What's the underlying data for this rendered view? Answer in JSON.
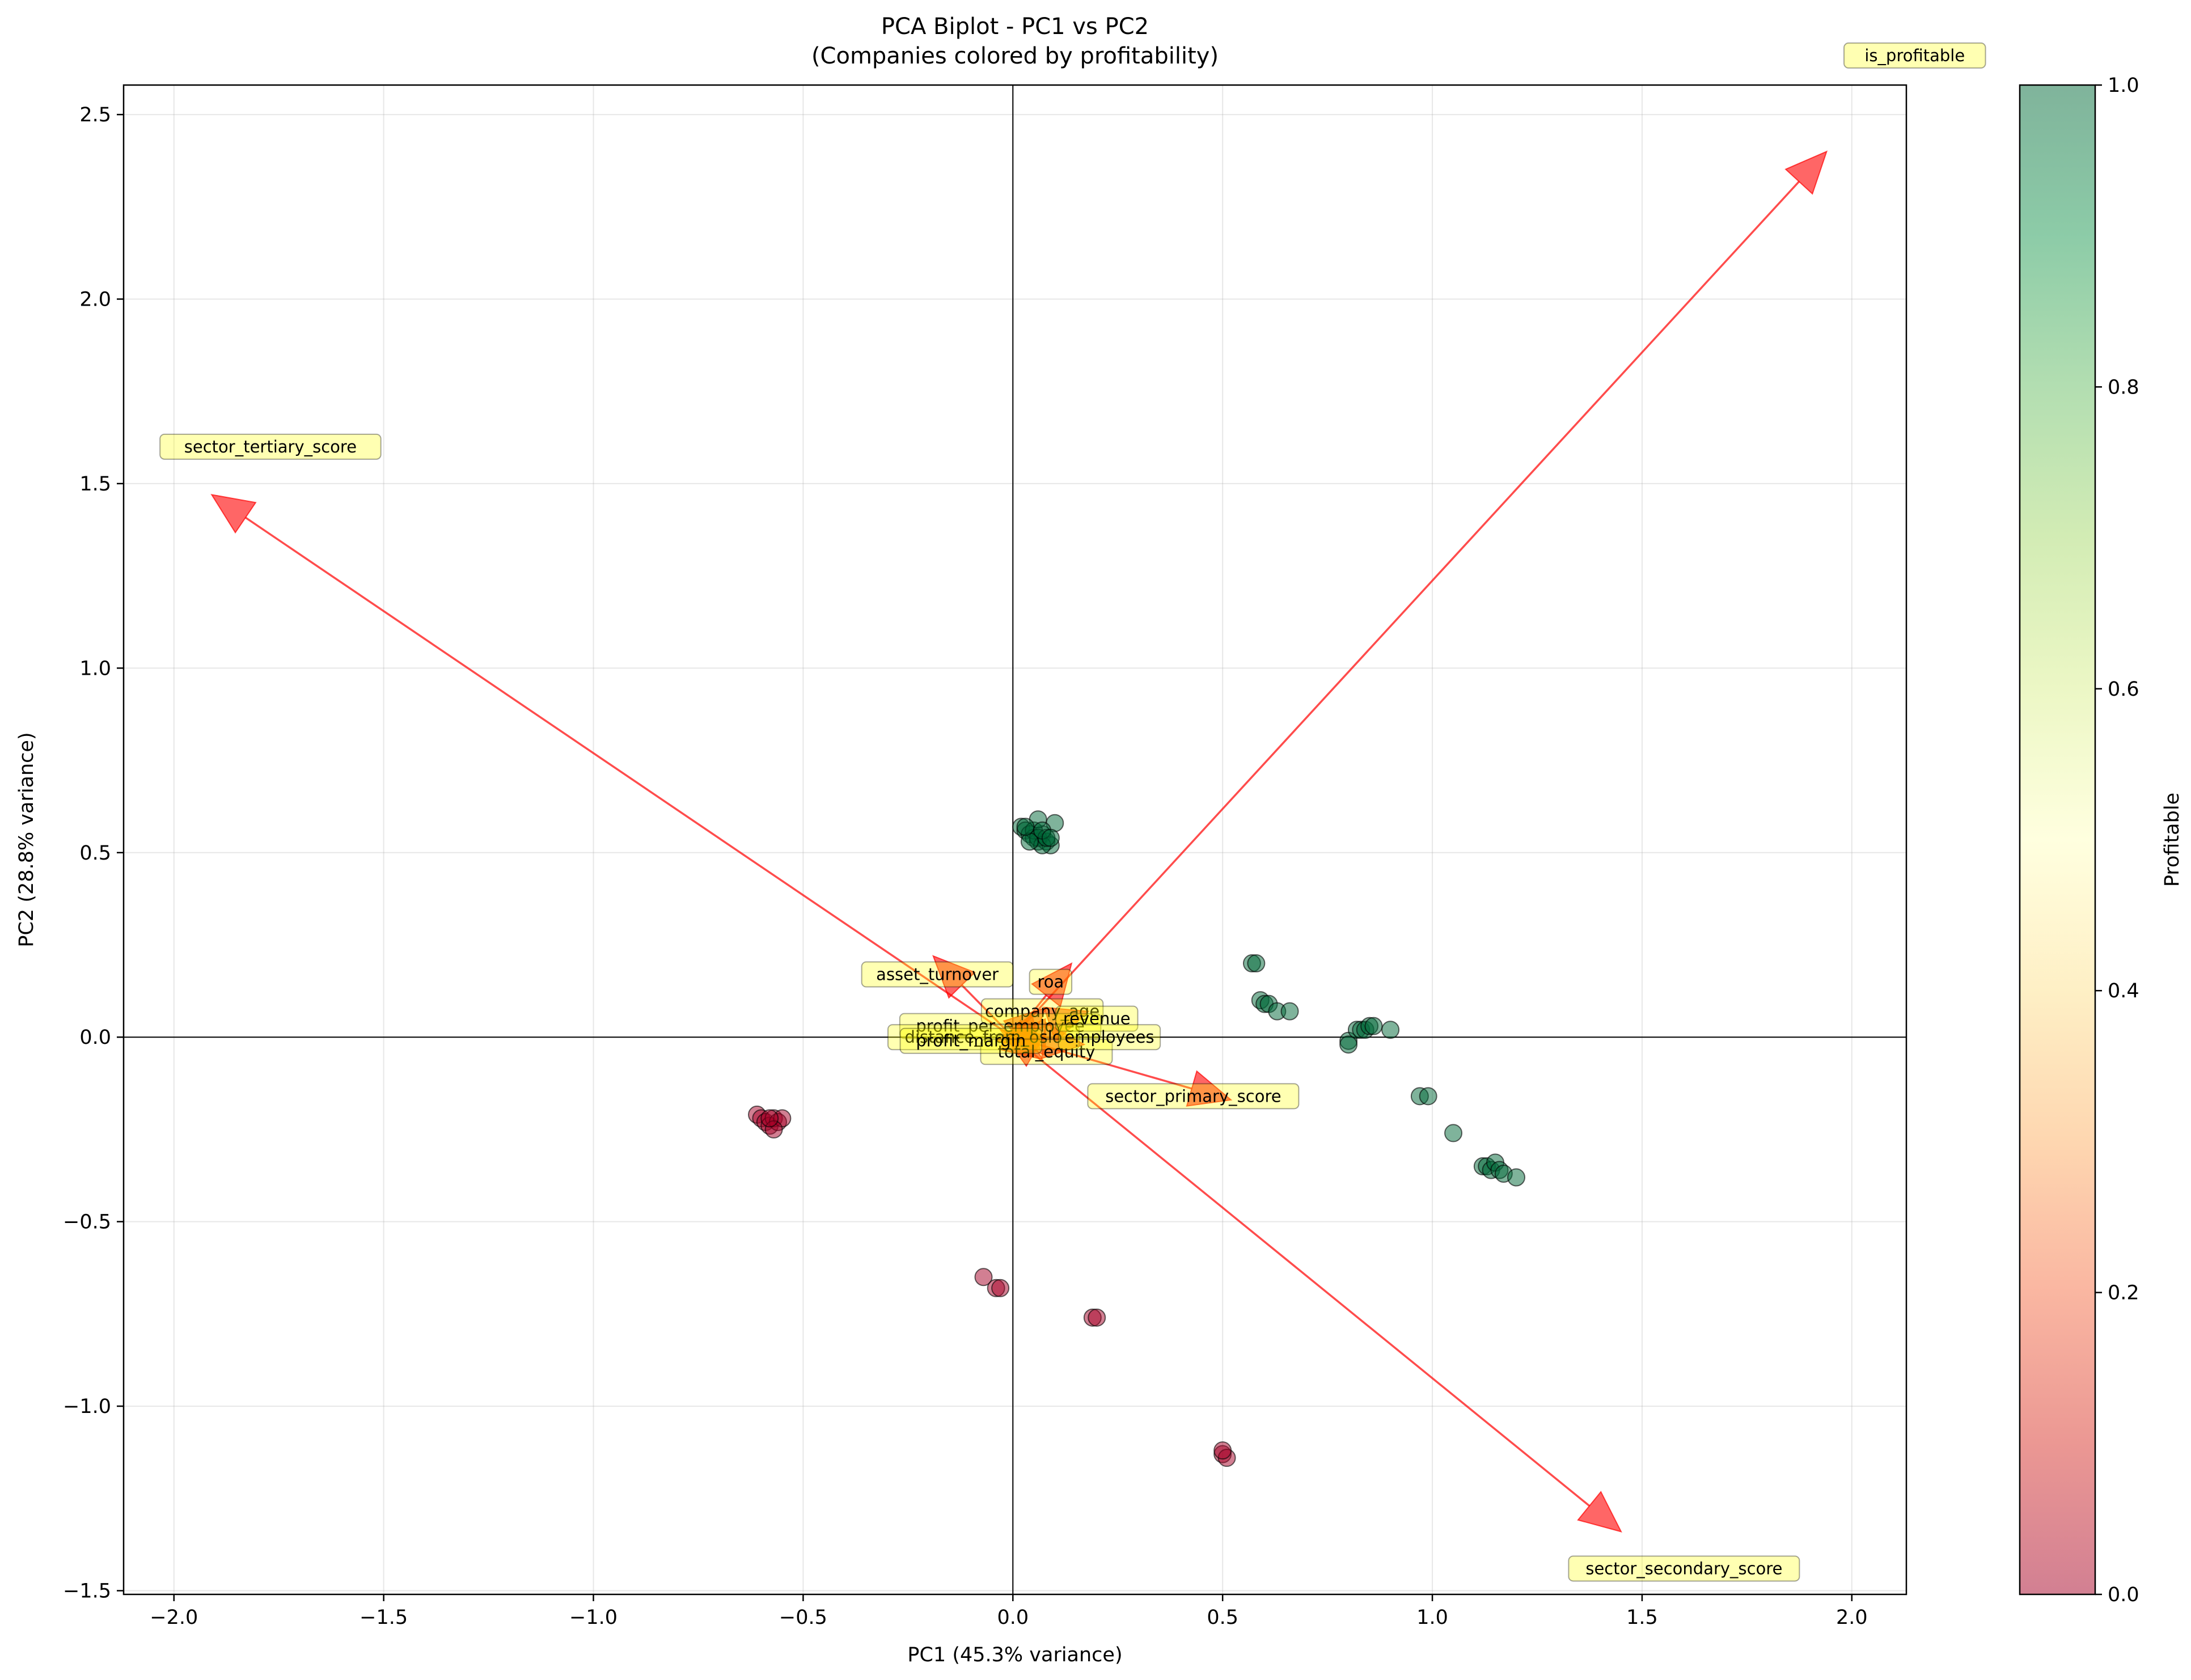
{
  "chart_data": {
    "type": "scatter",
    "title": "PCA Biplot - PC1 vs PC2",
    "subtitle": "(Companies colored by profitability)",
    "xlabel": "PC1 (45.3% variance)",
    "ylabel": "PC2 (28.8% variance)",
    "xlim": [
      -2.12,
      2.13
    ],
    "ylim": [
      -1.51,
      2.58
    ],
    "xticks": [
      -2.0,
      -1.5,
      -1.0,
      -0.5,
      0.0,
      0.5,
      1.0,
      1.5,
      2.0
    ],
    "xtick_labels": [
      "−2.0",
      "−1.5",
      "−1.0",
      "−0.5",
      "0.0",
      "0.5",
      "1.0",
      "1.5",
      "2.0"
    ],
    "yticks": [
      -1.5,
      -1.0,
      -0.5,
      0.0,
      0.5,
      1.0,
      1.5,
      2.0,
      2.5
    ],
    "ytick_labels": [
      "−1.5",
      "−1.0",
      "−0.5",
      "0.0",
      "0.5",
      "1.0",
      "1.5",
      "2.0",
      "2.5"
    ],
    "grid": true,
    "colorbar": {
      "label": "Profitable",
      "ticks": [
        0.0,
        0.2,
        0.4,
        0.6,
        0.8,
        1.0
      ],
      "tick_labels": [
        "0.0",
        "0.2",
        "0.4",
        "0.6",
        "0.8",
        "1.0"
      ],
      "colormap": [
        "#a50026",
        "#d73027",
        "#f46d43",
        "#fdae61",
        "#fee08b",
        "#ffffbf",
        "#d9ef8b",
        "#a6d96a",
        "#66bd63",
        "#1a9850",
        "#006837"
      ]
    },
    "series": [
      {
        "profitable": 1,
        "points": [
          [
            0.02,
            0.57
          ],
          [
            0.03,
            0.56
          ],
          [
            0.04,
            0.55
          ],
          [
            0.05,
            0.54
          ],
          [
            0.06,
            0.53
          ],
          [
            0.07,
            0.55
          ],
          [
            0.08,
            0.53
          ],
          [
            0.09,
            0.52
          ],
          [
            0.05,
            0.56
          ],
          [
            0.06,
            0.54
          ],
          [
            0.07,
            0.52
          ],
          [
            0.08,
            0.54
          ],
          [
            0.1,
            0.58
          ],
          [
            0.06,
            0.59
          ],
          [
            0.04,
            0.53
          ],
          [
            0.03,
            0.57
          ],
          [
            0.07,
            0.56
          ],
          [
            0.09,
            0.54
          ],
          [
            0.57,
            0.2
          ],
          [
            0.58,
            0.2
          ],
          [
            0.59,
            0.1
          ],
          [
            0.6,
            0.09
          ],
          [
            0.61,
            0.09
          ],
          [
            0.63,
            0.07
          ],
          [
            0.66,
            0.07
          ],
          [
            0.8,
            -0.01
          ],
          [
            0.8,
            -0.02
          ],
          [
            0.82,
            0.02
          ],
          [
            0.83,
            0.02
          ],
          [
            0.84,
            0.02
          ],
          [
            0.85,
            0.03
          ],
          [
            0.86,
            0.03
          ],
          [
            0.9,
            0.02
          ],
          [
            0.97,
            -0.16
          ],
          [
            0.99,
            -0.16
          ],
          [
            1.05,
            -0.26
          ],
          [
            1.12,
            -0.35
          ],
          [
            1.13,
            -0.35
          ],
          [
            1.14,
            -0.36
          ],
          [
            1.15,
            -0.34
          ],
          [
            1.16,
            -0.36
          ],
          [
            1.17,
            -0.37
          ],
          [
            1.2,
            -0.38
          ]
        ]
      },
      {
        "profitable": 0,
        "points": [
          [
            -0.61,
            -0.21
          ],
          [
            -0.6,
            -0.22
          ],
          [
            -0.59,
            -0.23
          ],
          [
            -0.58,
            -0.24
          ],
          [
            -0.57,
            -0.22
          ],
          [
            -0.56,
            -0.23
          ],
          [
            -0.55,
            -0.22
          ],
          [
            -0.57,
            -0.25
          ],
          [
            -0.58,
            -0.22
          ],
          [
            -0.07,
            -0.65
          ],
          [
            -0.04,
            -0.68
          ],
          [
            -0.03,
            -0.68
          ],
          [
            0.19,
            -0.76
          ],
          [
            0.2,
            -0.76
          ],
          [
            0.5,
            -1.13
          ],
          [
            0.51,
            -1.14
          ],
          [
            0.5,
            -1.12
          ]
        ]
      }
    ],
    "loadings": [
      {
        "name": "is_profitable",
        "x": 1.94,
        "y": 2.4,
        "lx": 2.15,
        "ly": 2.66
      },
      {
        "name": "sector_tertiary_score",
        "x": -1.91,
        "y": 1.47,
        "lx": -1.77,
        "ly": 1.6
      },
      {
        "name": "sector_secondary_score",
        "x": 1.45,
        "y": -1.34,
        "lx": 1.6,
        "ly": -1.44
      },
      {
        "name": "sector_primary_score",
        "x": 0.52,
        "y": -0.17,
        "lx": 0.43,
        "ly": -0.16
      },
      {
        "name": "asset_turnover",
        "x": -0.19,
        "y": 0.22,
        "lx": -0.18,
        "ly": 0.17
      },
      {
        "name": "roa",
        "x": 0.14,
        "y": 0.2,
        "lx": 0.09,
        "ly": 0.15
      },
      {
        "name": "company_age",
        "x": 0.08,
        "y": 0.08,
        "lx": 0.07,
        "ly": 0.07
      },
      {
        "name": "profit_per_employee",
        "x": -0.03,
        "y": 0.02,
        "lx": -0.03,
        "ly": 0.03
      },
      {
        "name": "distance_from_oslo",
        "x": -0.04,
        "y": -0.01,
        "lx": -0.07,
        "ly": 0.0
      },
      {
        "name": "total_equity",
        "x": 0.07,
        "y": -0.06,
        "lx": 0.08,
        "ly": -0.04
      },
      {
        "name": "revenue",
        "x": 0.18,
        "y": 0.07,
        "lx": 0.2,
        "ly": 0.05
      },
      {
        "name": "employees",
        "x": 0.17,
        "y": -0.02,
        "lx": 0.23,
        "ly": 0.0
      },
      {
        "name": "profit_margin",
        "x": -0.02,
        "y": 0.0,
        "lx": -0.1,
        "ly": -0.01
      }
    ]
  }
}
